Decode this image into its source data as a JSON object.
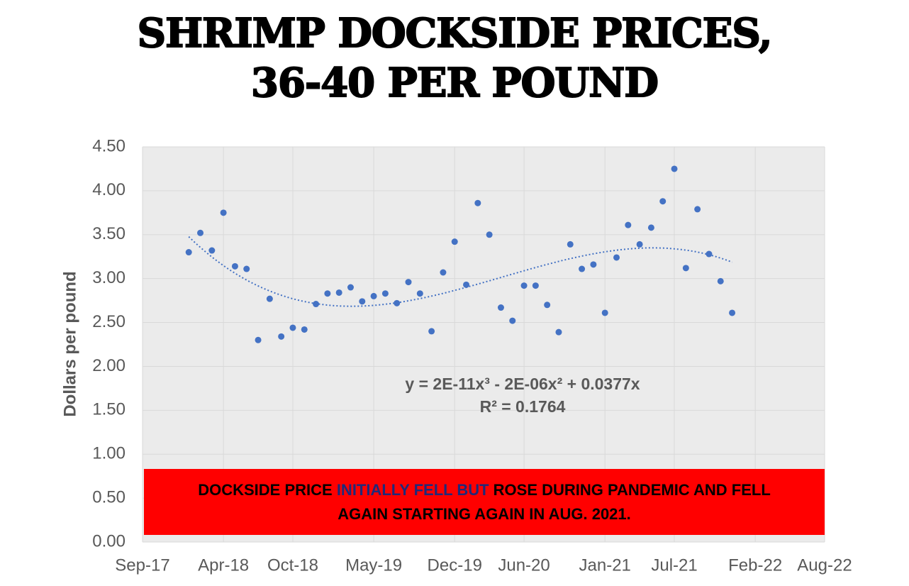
{
  "chart_data": {
    "type": "scatter",
    "title_lines": [
      "SHRIMP DOCKSIDE PRICES,",
      "36-40 PER POUND"
    ],
    "y_label": "Dollars per pound",
    "x": [
      "2018-01",
      "2018-02",
      "2018-03",
      "2018-04",
      "2018-05",
      "2018-06",
      "2018-07",
      "2018-08",
      "2018-09",
      "2018-10",
      "2018-11",
      "2018-12",
      "2019-01",
      "2019-02",
      "2019-03",
      "2019-04",
      "2019-05",
      "2019-06",
      "2019-07",
      "2019-08",
      "2019-09",
      "2019-10",
      "2019-11",
      "2019-12",
      "2020-01",
      "2020-02",
      "2020-03",
      "2020-04",
      "2020-05",
      "2020-06",
      "2020-07",
      "2020-08",
      "2020-09",
      "2020-10",
      "2020-11",
      "2020-12",
      "2021-01",
      "2021-02",
      "2021-03",
      "2021-04",
      "2021-05",
      "2021-06",
      "2021-07",
      "2021-08",
      "2021-09",
      "2021-10",
      "2021-11",
      "2021-12"
    ],
    "series": [
      {
        "name": "Price",
        "color": "#4472c4",
        "values": [
          3.3,
          3.52,
          3.32,
          3.75,
          3.14,
          3.11,
          2.3,
          2.77,
          2.34,
          2.44,
          2.42,
          2.71,
          2.83,
          2.84,
          2.9,
          2.74,
          2.8,
          2.83,
          2.72,
          2.96,
          2.83,
          2.4,
          3.07,
          3.42,
          2.93,
          3.86,
          3.5,
          2.67,
          2.52,
          2.92,
          2.92,
          2.7,
          2.39,
          3.39,
          3.11,
          3.16,
          2.61,
          3.24,
          3.61,
          3.39,
          3.58,
          3.88,
          4.25,
          3.12,
          3.79,
          3.28,
          2.97,
          2.61
        ]
      }
    ],
    "xlim": [
      "2017-09",
      "2022-08"
    ],
    "xticks": [
      {
        "value": "2017-09",
        "label": "Sep-17"
      },
      {
        "value": "2018-04",
        "label": "Apr-18"
      },
      {
        "value": "2018-10",
        "label": "Oct-18"
      },
      {
        "value": "2019-05",
        "label": "May-19"
      },
      {
        "value": "2019-12",
        "label": "Dec-19"
      },
      {
        "value": "2020-06",
        "label": "Jun-20"
      },
      {
        "value": "2021-01",
        "label": "Jan-21"
      },
      {
        "value": "2021-07",
        "label": "Jul-21"
      },
      {
        "value": "2022-02",
        "label": "Feb-22"
      },
      {
        "value": "2022-08",
        "label": "Aug-22"
      }
    ],
    "ylim": [
      0,
      4.5
    ],
    "yticks": [
      {
        "value": 0,
        "label": "0.00"
      },
      {
        "value": 0.5,
        "label": "0.50"
      },
      {
        "value": 1,
        "label": "1.00"
      },
      {
        "value": 1.5,
        "label": "1.50"
      },
      {
        "value": 2,
        "label": "2.00"
      },
      {
        "value": 2.5,
        "label": "2.50"
      },
      {
        "value": 3,
        "label": "3.00"
      },
      {
        "value": 3.5,
        "label": "3.50"
      },
      {
        "value": 4,
        "label": "4.00"
      },
      {
        "value": 4.5,
        "label": "4.50"
      }
    ],
    "grid": true,
    "trendline": {
      "type": "polynomial",
      "equation": "y = 2E-11x³ - 2E-06x² + 0.0377x",
      "r2": "R² = 0.1764"
    },
    "annotation": {
      "parts": [
        "DOCKSIDE PRICE ",
        "INITIALLY FELL BUT",
        " ROSE DURING PANDEMIC AND FELL AGAIN STARTING AGAIN IN AUG. 2021."
      ]
    }
  }
}
